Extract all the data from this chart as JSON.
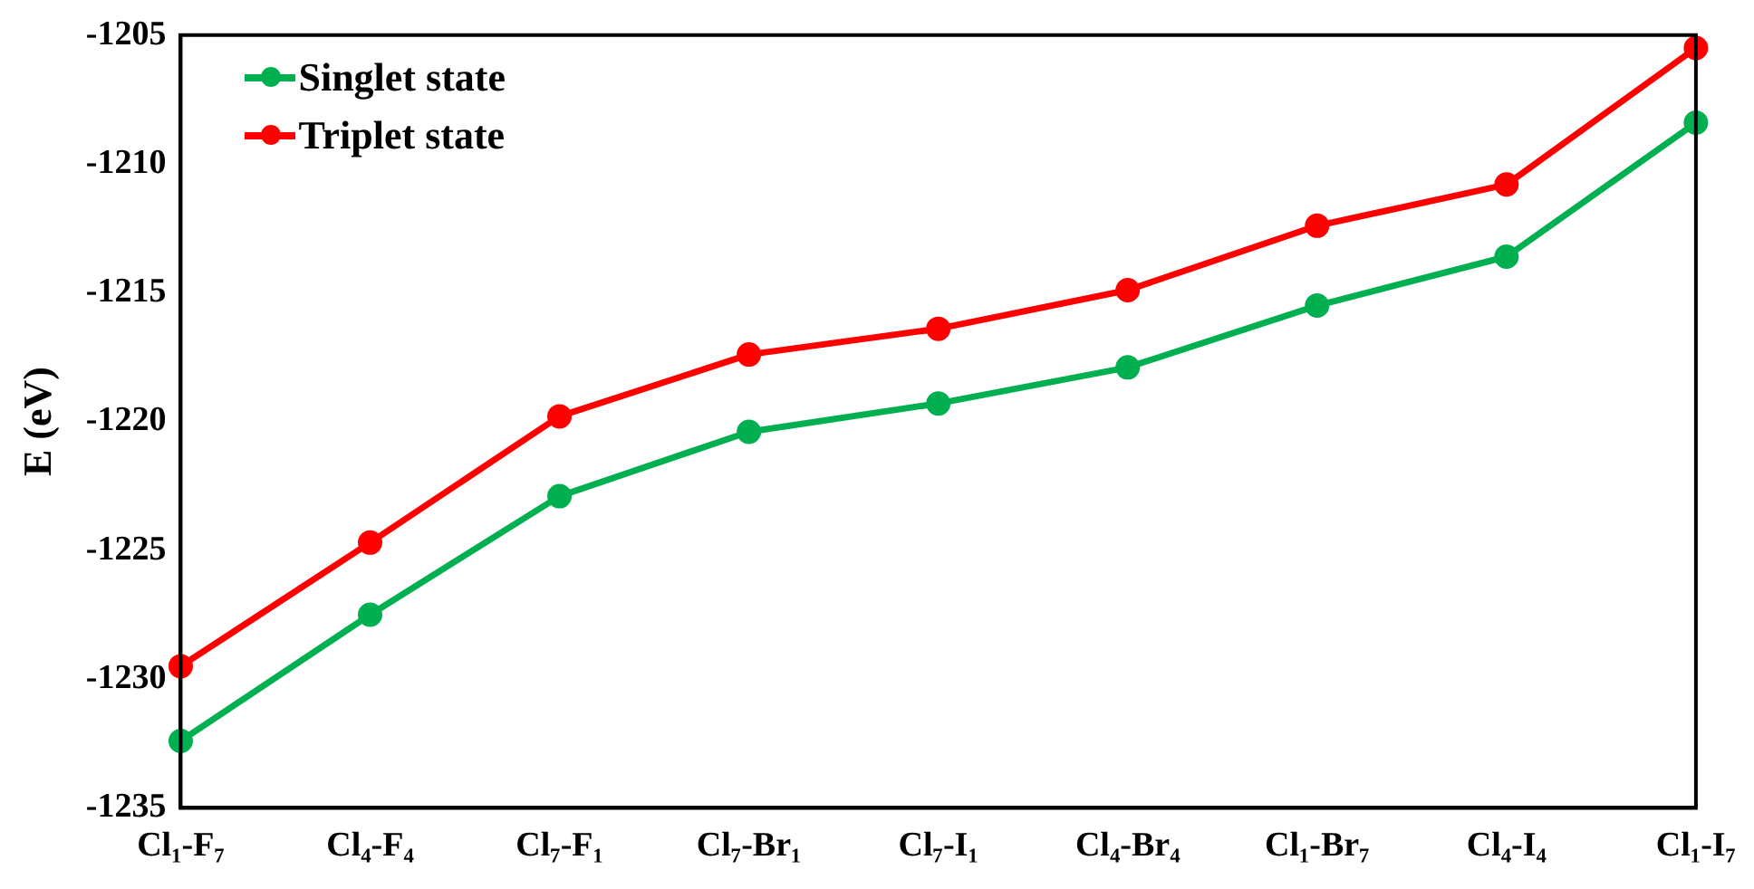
{
  "chart_data": {
    "type": "line",
    "ylabel": "E (eV)",
    "categories": [
      "Cl₁-F₇",
      "Cl₄-F₄",
      "Cl₇-F₁",
      "Cl₇-Br₁",
      "Cl₇-I₁",
      "Cl₄-Br₄",
      "Cl₁-Br₇",
      "Cl₄-I₄",
      "Cl₁-I₇"
    ],
    "series": [
      {
        "name": "Singlet state",
        "color": "#00b050",
        "values": [
          -1232.4,
          -1227.5,
          -1222.9,
          -1220.4,
          -1219.3,
          -1217.9,
          -1215.5,
          -1213.6,
          -1208.4
        ]
      },
      {
        "name": "Triplet state",
        "color": "#ff0000",
        "values": [
          -1229.5,
          -1224.7,
          -1219.8,
          -1217.4,
          -1216.4,
          -1214.9,
          -1212.4,
          -1210.8,
          -1205.5
        ]
      }
    ],
    "ylim": [
      -1235,
      -1205
    ],
    "yticks": [
      -1235,
      -1230,
      -1225,
      -1220,
      -1215,
      -1210,
      -1205
    ],
    "grid": false,
    "legend": "top left",
    "marker": "circle",
    "line_style": "solid"
  }
}
